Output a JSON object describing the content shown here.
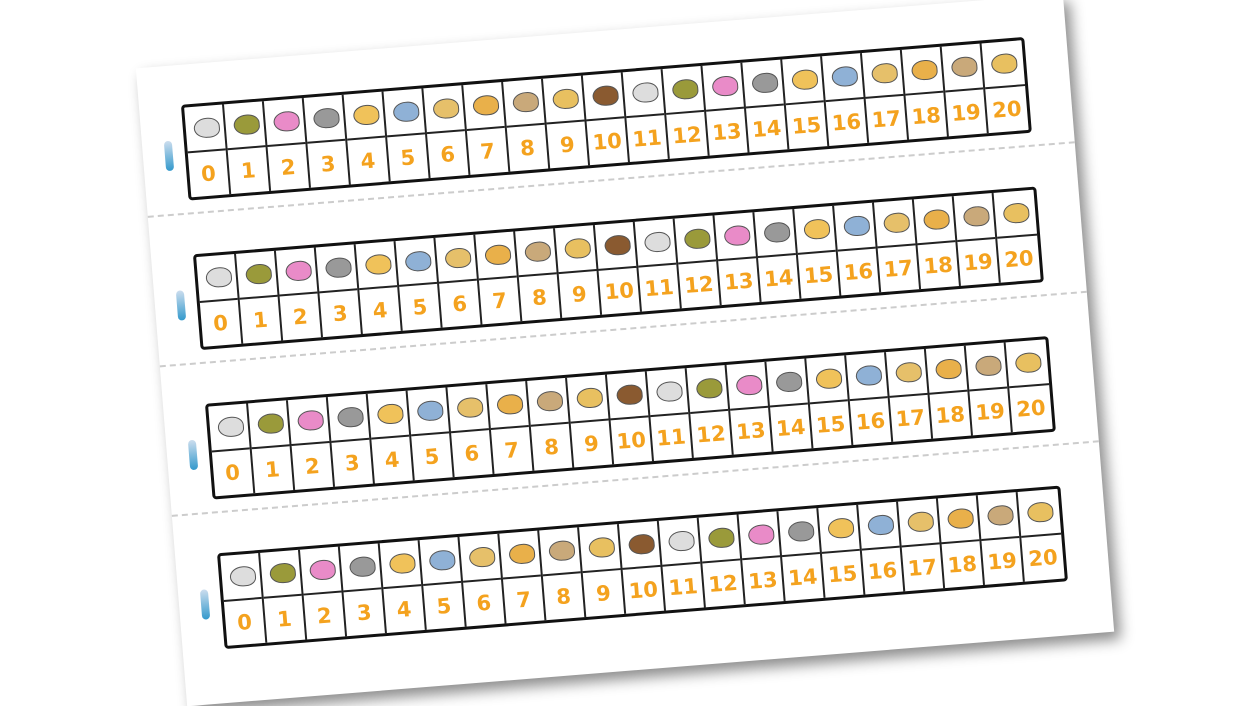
{
  "strips": [
    {
      "cells": [
        0,
        1,
        2,
        3,
        4,
        5,
        6,
        7,
        8,
        9,
        10,
        11,
        12,
        13,
        14,
        15,
        16,
        17,
        18,
        19,
        20
      ]
    },
    {
      "cells": [
        0,
        1,
        2,
        3,
        4,
        5,
        6,
        7,
        8,
        9,
        10,
        11,
        12,
        13,
        14,
        15,
        16,
        17,
        18,
        19,
        20
      ]
    },
    {
      "cells": [
        0,
        1,
        2,
        3,
        4,
        5,
        6,
        7,
        8,
        9,
        10,
        11,
        12,
        13,
        14,
        15,
        16,
        17,
        18,
        19,
        20
      ]
    },
    {
      "cells": [
        0,
        1,
        2,
        3,
        4,
        5,
        6,
        7,
        8,
        9,
        10,
        11,
        12,
        13,
        14,
        15,
        16,
        17,
        18,
        19,
        20
      ]
    }
  ]
}
